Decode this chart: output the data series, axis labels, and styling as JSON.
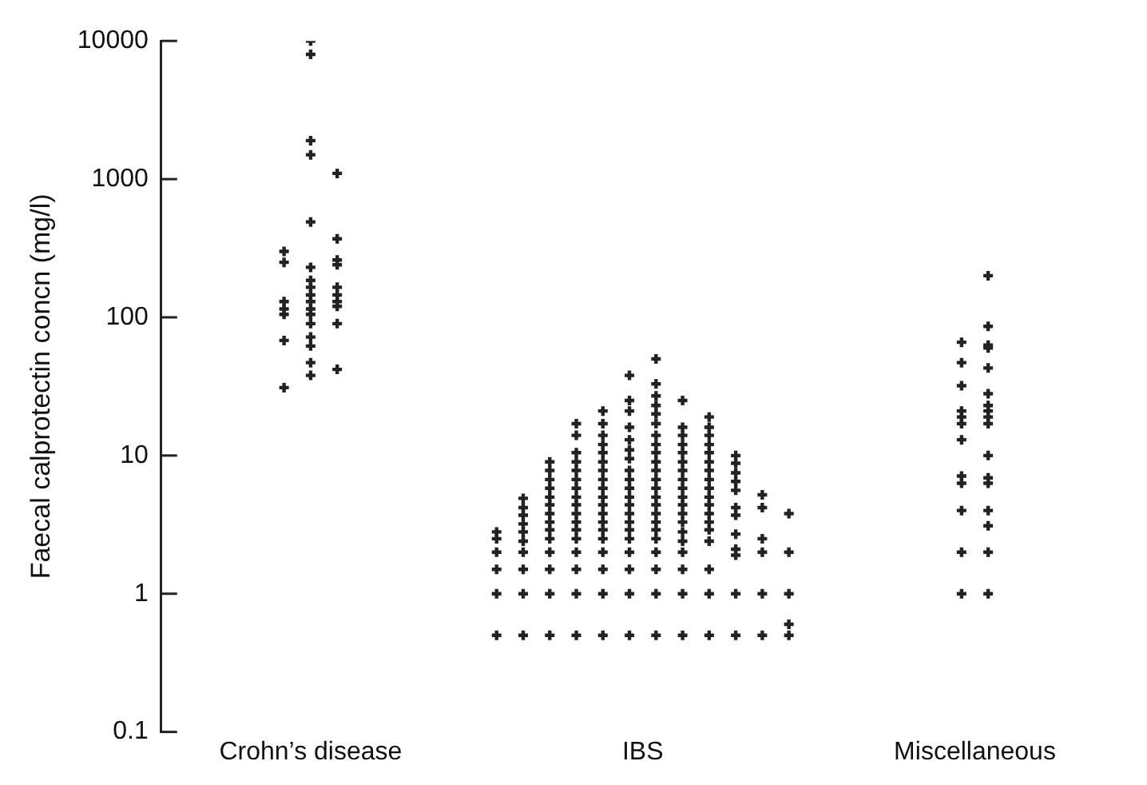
{
  "chart_data": {
    "type": "scatter",
    "ylabel": "Faecal calprotectin concn (mg/l)",
    "log": "y",
    "grid": false,
    "legend": false,
    "marker": "cross",
    "categories": [
      "Crohn’s disease",
      "IBS",
      "Miscellaneous"
    ],
    "ylim": [
      0.1,
      10000
    ],
    "yticks": [
      0.1,
      1,
      10,
      100,
      1000,
      10000
    ],
    "series": [
      {
        "color": "#222222",
        "x": [
          "Crohn’s disease",
          "Crohn’s disease",
          "Crohn’s disease",
          "Crohn’s disease",
          "Crohn’s disease",
          "Crohn’s disease",
          "Crohn’s disease",
          "Crohn’s disease",
          "Crohn’s disease",
          "Crohn’s disease",
          "Crohn’s disease",
          "Crohn’s disease",
          "Crohn’s disease",
          "Crohn’s disease",
          "Crohn’s disease",
          "Crohn’s disease",
          "Crohn’s disease",
          "Crohn’s disease",
          "Crohn’s disease",
          "Crohn’s disease",
          "Crohn’s disease",
          "Crohn’s disease",
          "Crohn’s disease",
          "Crohn’s disease",
          "Crohn’s disease",
          "Crohn’s disease",
          "Crohn’s disease",
          "Crohn’s disease",
          "Crohn’s disease",
          "Crohn’s disease",
          "Crohn’s disease",
          "Crohn’s disease",
          "Crohn’s disease",
          "Crohn’s disease"
        ],
        "values": [
          31,
          68,
          105,
          115,
          130,
          250,
          300,
          38,
          47,
          62,
          72,
          90,
          105,
          115,
          130,
          145,
          165,
          185,
          230,
          490,
          1500,
          1900,
          8000,
          10000,
          42,
          90,
          120,
          130,
          145,
          165,
          240,
          260,
          370,
          1100
        ]
      },
      {
        "color": "#222222",
        "x": [
          "IBS",
          "IBS",
          "IBS",
          "IBS",
          "IBS",
          "IBS",
          "IBS",
          "IBS",
          "IBS",
          "IBS",
          "IBS",
          "IBS",
          "IBS",
          "IBS",
          "IBS",
          "IBS",
          "IBS",
          "IBS",
          "IBS",
          "IBS",
          "IBS",
          "IBS",
          "IBS",
          "IBS",
          "IBS",
          "IBS",
          "IBS",
          "IBS",
          "IBS",
          "IBS",
          "IBS",
          "IBS",
          "IBS",
          "IBS",
          "IBS",
          "IBS",
          "IBS",
          "IBS",
          "IBS",
          "IBS",
          "IBS",
          "IBS",
          "IBS",
          "IBS",
          "IBS",
          "IBS",
          "IBS",
          "IBS",
          "IBS",
          "IBS",
          "IBS",
          "IBS",
          "IBS",
          "IBS",
          "IBS",
          "IBS",
          "IBS",
          "IBS",
          "IBS",
          "IBS",
          "IBS",
          "IBS",
          "IBS",
          "IBS",
          "IBS",
          "IBS",
          "IBS",
          "IBS",
          "IBS",
          "IBS",
          "IBS",
          "IBS",
          "IBS",
          "IBS",
          "IBS",
          "IBS",
          "IBS",
          "IBS",
          "IBS",
          "IBS",
          "IBS",
          "IBS",
          "IBS",
          "IBS",
          "IBS",
          "IBS",
          "IBS",
          "IBS",
          "IBS",
          "IBS",
          "IBS",
          "IBS",
          "IBS",
          "IBS",
          "IBS",
          "IBS",
          "IBS",
          "IBS",
          "IBS",
          "IBS",
          "IBS",
          "IBS",
          "IBS",
          "IBS",
          "IBS",
          "IBS",
          "IBS",
          "IBS",
          "IBS",
          "IBS",
          "IBS",
          "IBS",
          "IBS",
          "IBS",
          "IBS",
          "IBS",
          "IBS",
          "IBS",
          "IBS",
          "IBS",
          "IBS",
          "IBS",
          "IBS",
          "IBS",
          "IBS",
          "IBS",
          "IBS",
          "IBS",
          "IBS",
          "IBS",
          "IBS",
          "IBS",
          "IBS",
          "IBS",
          "IBS",
          "IBS",
          "IBS",
          "IBS",
          "IBS",
          "IBS",
          "IBS",
          "IBS",
          "IBS",
          "IBS",
          "IBS",
          "IBS",
          "IBS",
          "IBS",
          "IBS",
          "IBS",
          "IBS",
          "IBS",
          "IBS",
          "IBS",
          "IBS",
          "IBS",
          "IBS",
          "IBS",
          "IBS",
          "IBS",
          "IBS",
          "IBS",
          "IBS",
          "IBS",
          "IBS",
          "IBS",
          "IBS",
          "IBS",
          "IBS"
        ],
        "values": [
          0.5,
          1,
          1.5,
          2,
          2.5,
          2.8,
          0.5,
          1,
          1.5,
          2,
          2.4,
          2.8,
          3.2,
          3.7,
          4.2,
          4.9,
          0.5,
          1,
          1.5,
          2,
          2.5,
          2.9,
          3.3,
          3.8,
          4.4,
          5,
          5.8,
          6.7,
          7.8,
          9,
          0.5,
          1,
          1.5,
          2,
          2.5,
          2.9,
          3.3,
          3.8,
          4.4,
          5,
          5.8,
          6.7,
          7.8,
          9,
          10.5,
          14,
          17,
          0.5,
          1,
          1.5,
          2,
          2.5,
          2.9,
          3.3,
          3.8,
          4.4,
          5,
          5.8,
          6.7,
          7.8,
          9,
          10.5,
          12,
          14,
          17,
          21,
          0.5,
          1,
          1.5,
          2,
          2.5,
          2.9,
          3.3,
          3.8,
          4.4,
          5,
          5.8,
          6.7,
          7.8,
          9.5,
          11,
          13,
          16,
          21,
          25,
          38,
          0.5,
          1,
          1.5,
          2,
          2.5,
          2.9,
          3.3,
          3.8,
          4.4,
          5,
          5.8,
          6.7,
          7.8,
          9,
          10.5,
          12,
          14,
          17,
          20,
          23,
          27,
          33,
          50,
          0.5,
          1,
          1.5,
          2,
          2.4,
          2.8,
          3.3,
          3.8,
          4.4,
          5,
          5.8,
          6.7,
          7.8,
          9,
          10.5,
          12,
          14,
          16,
          25,
          0.5,
          1,
          1.5,
          2.4,
          2.9,
          3.3,
          3.8,
          4.4,
          5,
          5.8,
          6.7,
          7.8,
          9,
          10.5,
          12,
          14,
          16,
          19,
          0.5,
          1,
          1.9,
          2.1,
          2.7,
          3.7,
          4.2,
          5.6,
          6.5,
          7.5,
          8.8,
          10,
          0.5,
          1,
          2,
          2.5,
          4.2,
          5.2,
          0.5,
          0.6,
          1,
          2,
          3.8
        ]
      },
      {
        "color": "#222222",
        "x": [
          "Miscellaneous",
          "Miscellaneous",
          "Miscellaneous",
          "Miscellaneous",
          "Miscellaneous",
          "Miscellaneous",
          "Miscellaneous",
          "Miscellaneous",
          "Miscellaneous",
          "Miscellaneous",
          "Miscellaneous",
          "Miscellaneous",
          "Miscellaneous",
          "Miscellaneous",
          "Miscellaneous",
          "Miscellaneous",
          "Miscellaneous",
          "Miscellaneous",
          "Miscellaneous",
          "Miscellaneous",
          "Miscellaneous",
          "Miscellaneous",
          "Miscellaneous",
          "Miscellaneous",
          "Miscellaneous",
          "Miscellaneous",
          "Miscellaneous",
          "Miscellaneous",
          "Miscellaneous"
        ],
        "values": [
          1,
          2,
          4,
          6.3,
          7.1,
          13,
          17,
          19,
          21,
          32,
          47,
          66,
          1,
          2,
          3.1,
          4,
          6.3,
          6.9,
          10,
          17,
          19,
          21,
          23,
          28,
          43,
          60,
          63,
          86,
          200
        ]
      }
    ]
  }
}
